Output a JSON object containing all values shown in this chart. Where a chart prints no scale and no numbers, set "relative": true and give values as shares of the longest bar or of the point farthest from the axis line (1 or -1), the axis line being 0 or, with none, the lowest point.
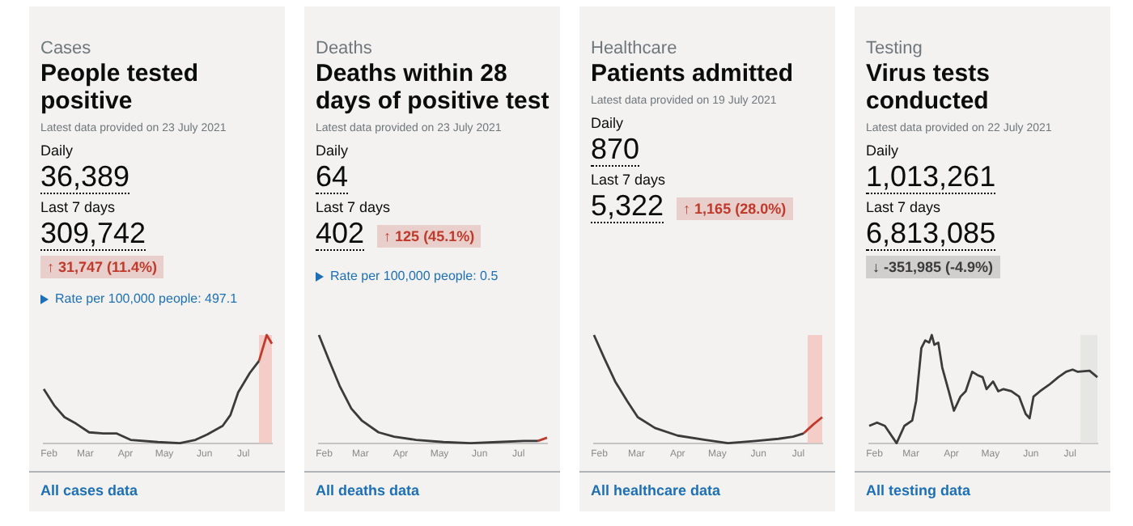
{
  "chart_data": [
    {
      "type": "line",
      "subtitle": "Cases",
      "title": "People tested positive",
      "relative": true,
      "legend": false,
      "grid": false,
      "annotations": [
        "Latest data provided on 23 July 2021",
        "Daily",
        "36,389",
        "Last 7 days",
        "309,742",
        "↑ 31,747 (11.4%)",
        "Rate per 100,000 people: 497.1",
        "All cases data"
      ],
      "xlim": [
        "2021-01-28",
        "2021-07-23"
      ],
      "xticks": [
        {
          "value": "2021-02-01",
          "label": "Feb"
        },
        {
          "value": "2021-03-01",
          "label": "Mar"
        },
        {
          "value": "2021-04-01",
          "label": "Apr"
        },
        {
          "value": "2021-05-01",
          "label": "May"
        },
        {
          "value": "2021-06-01",
          "label": "Jun"
        },
        {
          "value": "2021-07-01",
          "label": "Jul"
        }
      ],
      "bands": [
        {
          "axis": "x",
          "from": "2021-07-13",
          "to": "2021-07-23",
          "color": "#f4cdc8"
        }
      ],
      "series": [
        {
          "color": "#3b3b3b",
          "x": [
            "2021-01-28",
            "2021-02-05",
            "2021-02-13",
            "2021-02-22",
            "2021-03-04",
            "2021-03-15",
            "2021-03-25",
            "2021-04-05",
            "2021-04-26",
            "2021-05-13",
            "2021-05-25",
            "2021-06-03",
            "2021-06-15",
            "2021-06-21",
            "2021-06-27",
            "2021-07-06",
            "2021-07-13"
          ],
          "values": [
            0.5,
            0.35,
            0.24,
            0.18,
            0.1,
            0.09,
            0.09,
            0.03,
            0.01,
            0,
            0.03,
            0.08,
            0.16,
            0.26,
            0.47,
            0.65,
            0.76
          ]
        },
        {
          "color": "#c0392b",
          "x": [
            "2021-07-13",
            "2021-07-16",
            "2021-07-19",
            "2021-07-23"
          ],
          "values": [
            0.76,
            0.88,
            1,
            0.92
          ]
        }
      ]
    },
    {
      "type": "line",
      "subtitle": "Deaths",
      "title": "Deaths within 28 days of positive test",
      "relative": true,
      "legend": false,
      "grid": false,
      "annotations": [
        "Latest data provided on 23 July 2021",
        "Daily",
        "64",
        "Last 7 days",
        "402",
        "↑ 125 (45.1%)",
        "Rate per 100,000 people: 0.5",
        "All deaths data"
      ],
      "xlim": [
        "2021-01-28",
        "2021-07-23"
      ],
      "xticks": [
        {
          "value": "2021-02-01",
          "label": "Feb"
        },
        {
          "value": "2021-03-01",
          "label": "Mar"
        },
        {
          "value": "2021-04-01",
          "label": "Apr"
        },
        {
          "value": "2021-05-01",
          "label": "May"
        },
        {
          "value": "2021-06-01",
          "label": "Jun"
        },
        {
          "value": "2021-07-01",
          "label": "Jul"
        }
      ],
      "series": [
        {
          "color": "#3b3b3b",
          "x": [
            "2021-01-28",
            "2021-02-05",
            "2021-02-13",
            "2021-02-22",
            "2021-03-02",
            "2021-03-15",
            "2021-03-27",
            "2021-04-13",
            "2021-05-04",
            "2021-05-25",
            "2021-06-15",
            "2021-07-05",
            "2021-07-16"
          ],
          "values": [
            1,
            0.76,
            0.53,
            0.32,
            0.21,
            0.1,
            0.06,
            0.03,
            0.01,
            0,
            0.01,
            0.02,
            0.02
          ]
        },
        {
          "color": "#c0392b",
          "x": [
            "2021-07-16",
            "2021-07-23"
          ],
          "values": [
            0.02,
            0.05
          ]
        }
      ]
    },
    {
      "type": "line",
      "subtitle": "Healthcare",
      "title": "Patients admitted",
      "relative": true,
      "legend": false,
      "grid": false,
      "annotations": [
        "Latest data provided on 19 July 2021",
        "Daily",
        "870",
        "Last 7 days",
        "5,322",
        "↑ 1,165 (28.0%)",
        "All healthcare data"
      ],
      "xlim": [
        "2021-01-28",
        "2021-07-19"
      ],
      "xticks": [
        {
          "value": "2021-02-01",
          "label": "Feb"
        },
        {
          "value": "2021-03-01",
          "label": "Mar"
        },
        {
          "value": "2021-04-01",
          "label": "Apr"
        },
        {
          "value": "2021-05-01",
          "label": "May"
        },
        {
          "value": "2021-06-01",
          "label": "Jun"
        },
        {
          "value": "2021-07-01",
          "label": "Jul"
        }
      ],
      "bands": [
        {
          "axis": "x",
          "from": "2021-07-08",
          "to": "2021-07-19",
          "color": "#f4cdc8"
        }
      ],
      "series": [
        {
          "color": "#3b3b3b",
          "x": [
            "2021-01-28",
            "2021-02-05",
            "2021-02-13",
            "2021-02-22",
            "2021-03-02",
            "2021-03-15",
            "2021-04-01",
            "2021-04-22",
            "2021-05-09",
            "2021-05-30",
            "2021-06-16",
            "2021-06-27",
            "2021-07-05"
          ],
          "values": [
            1,
            0.78,
            0.57,
            0.39,
            0.24,
            0.14,
            0.07,
            0.03,
            0,
            0.02,
            0.04,
            0.06,
            0.09
          ]
        },
        {
          "color": "#c0392b",
          "x": [
            "2021-07-05",
            "2021-07-12",
            "2021-07-19"
          ],
          "values": [
            0.09,
            0.17,
            0.24
          ]
        }
      ]
    },
    {
      "type": "line",
      "subtitle": "Testing",
      "title": "Virus tests conducted",
      "relative": true,
      "legend": false,
      "grid": false,
      "annotations": [
        "Latest data provided on 22 July 2021",
        "Daily",
        "1,013,261",
        "Last 7 days",
        "6,813,085",
        "↓ -351,985 (-4.9%)",
        "All testing data"
      ],
      "xlim": [
        "2021-01-28",
        "2021-07-22"
      ],
      "xticks": [
        {
          "value": "2021-02-01",
          "label": "Feb"
        },
        {
          "value": "2021-03-01",
          "label": "Mar"
        },
        {
          "value": "2021-04-01",
          "label": "Apr"
        },
        {
          "value": "2021-05-01",
          "label": "May"
        },
        {
          "value": "2021-06-01",
          "label": "Jun"
        },
        {
          "value": "2021-07-01",
          "label": "Jul"
        }
      ],
      "bands": [
        {
          "axis": "x",
          "from": "2021-07-09",
          "to": "2021-07-22",
          "color": "#e6e6e3"
        }
      ],
      "series": [
        {
          "color": "#3b3b3b",
          "x": [
            "2021-01-28",
            "2021-02-03",
            "2021-02-09",
            "2021-02-18",
            "2021-02-24",
            "2021-03-02",
            "2021-03-05",
            "2021-03-09",
            "2021-03-12",
            "2021-03-15",
            "2021-03-17",
            "2021-03-19",
            "2021-03-22",
            "2021-03-25",
            "2021-03-30",
            "2021-04-03",
            "2021-04-08",
            "2021-04-12",
            "2021-04-17",
            "2021-04-21",
            "2021-04-25",
            "2021-04-28",
            "2021-05-03",
            "2021-05-07",
            "2021-05-11",
            "2021-05-17",
            "2021-05-23",
            "2021-05-28",
            "2021-05-31",
            "2021-06-03",
            "2021-06-08",
            "2021-06-15",
            "2021-06-22",
            "2021-06-28",
            "2021-07-03",
            "2021-07-07",
            "2021-07-16",
            "2021-07-22"
          ],
          "values": [
            0.16,
            0.19,
            0.16,
            0,
            0.16,
            0.21,
            0.39,
            0.88,
            0.95,
            0.93,
            1,
            0.91,
            0.93,
            0.7,
            0.48,
            0.3,
            0.43,
            0.48,
            0.66,
            0.63,
            0.61,
            0.5,
            0.57,
            0.48,
            0.5,
            0.48,
            0.43,
            0.27,
            0.23,
            0.43,
            0.48,
            0.54,
            0.61,
            0.66,
            0.68,
            0.66,
            0.67,
            0.61
          ]
        }
      ]
    }
  ]
}
